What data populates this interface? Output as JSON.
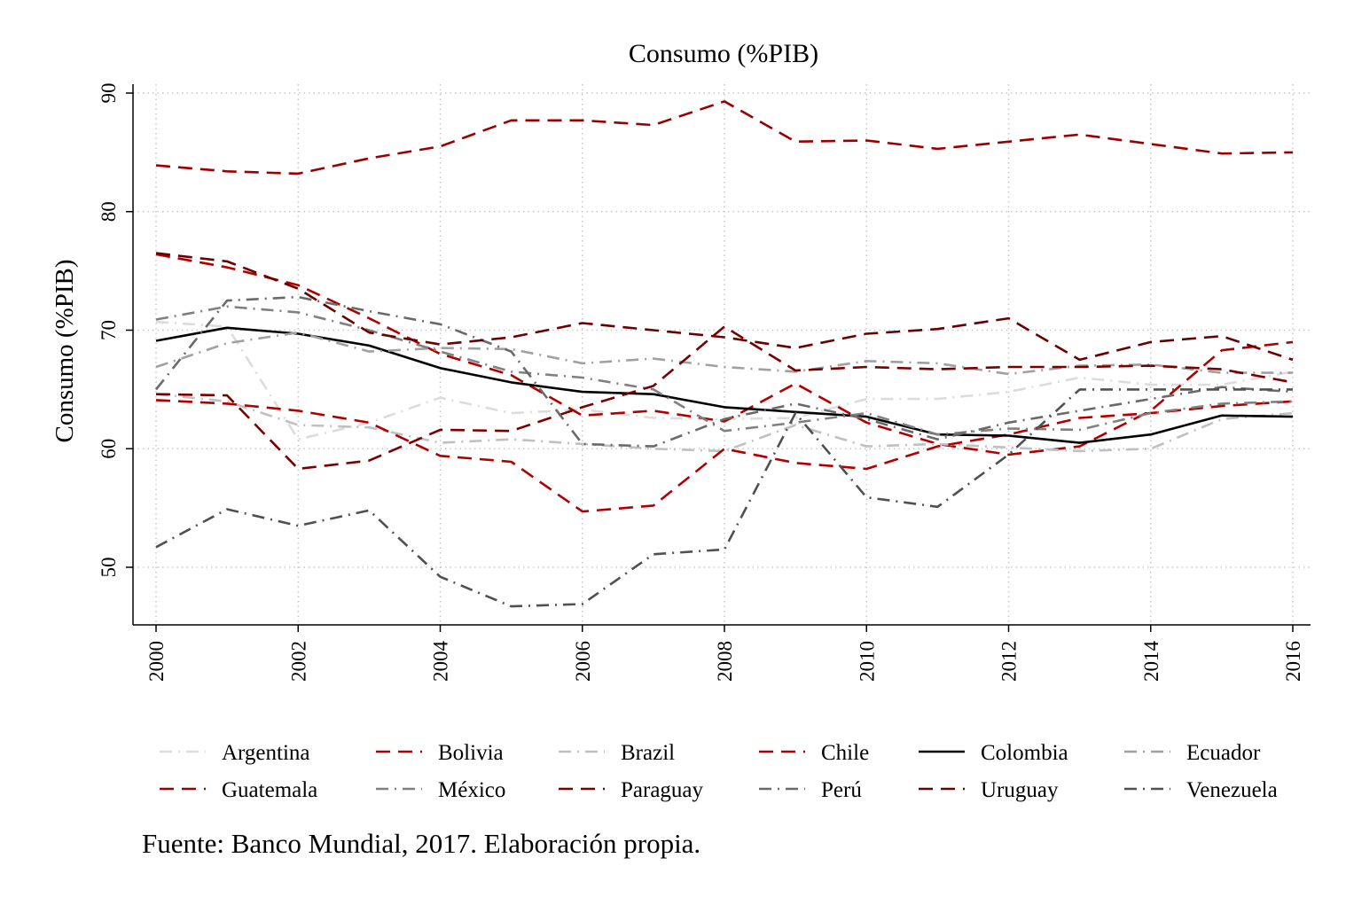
{
  "caption": "Fuente: Banco Mundial, 2017. Elaboración propia.",
  "chart_data": {
    "type": "line",
    "title": "Consumo (%PIB)",
    "xlabel": "",
    "ylabel": "Consumo (%PIB)",
    "xlim": [
      2000,
      2016
    ],
    "ylim": [
      45,
      90
    ],
    "x_ticks": [
      2000,
      2002,
      2004,
      2006,
      2008,
      2010,
      2012,
      2014,
      2016
    ],
    "y_ticks": [
      50,
      60,
      70,
      80,
      90
    ],
    "grid": true,
    "legend_position": "bottom",
    "x": [
      2000,
      2001,
      2002,
      2003,
      2004,
      2005,
      2006,
      2007,
      2008,
      2009,
      2010,
      2011,
      2012,
      2013,
      2014,
      2015,
      2016
    ],
    "series": [
      {
        "name": "Argentina",
        "color": "#dcdcdc",
        "dash": "dashdot",
        "values": [
          70.7,
          70.3,
          60.8,
          62.2,
          64.3,
          63.0,
          63.3,
          62.6,
          62.5,
          62.6,
          64.2,
          64.2,
          64.8,
          66.0,
          65.4,
          65.4,
          66.5
        ]
      },
      {
        "name": "Bolivia",
        "color": "#b00000",
        "dash": "dash",
        "values": [
          76.4,
          75.3,
          73.8,
          71.0,
          68.0,
          66.2,
          62.8,
          63.2,
          62.3,
          65.5,
          62.2,
          60.4,
          59.5,
          60.2,
          63.2,
          68.3,
          69.0
        ]
      },
      {
        "name": "Brazil",
        "color": "#c0c0c0",
        "dash": "dashdot",
        "values": [
          64.6,
          64.0,
          62.0,
          61.8,
          60.5,
          60.8,
          60.4,
          60.0,
          59.8,
          62.0,
          60.2,
          60.4,
          60.1,
          59.8,
          60.0,
          62.5,
          63.0
        ]
      },
      {
        "name": "Chile",
        "color": "#b00000",
        "dash": "dash",
        "values": [
          64.1,
          63.8,
          63.2,
          62.2,
          59.4,
          58.9,
          54.7,
          55.2,
          60.0,
          58.8,
          58.3,
          60.2,
          61.2,
          62.6,
          63.0,
          63.6,
          64.0
        ]
      },
      {
        "name": "Colombia",
        "color": "#000000",
        "dash": "solid",
        "values": [
          69.1,
          70.2,
          69.7,
          68.7,
          66.8,
          65.6,
          64.8,
          64.6,
          63.5,
          63.1,
          62.7,
          61.2,
          61.1,
          60.5,
          61.2,
          62.8,
          62.7
        ]
      },
      {
        "name": "Ecuador",
        "color": "#a0a0a0",
        "dash": "dashdot",
        "values": [
          66.9,
          68.9,
          69.8,
          68.2,
          68.5,
          68.4,
          67.2,
          67.6,
          66.9,
          66.5,
          67.4,
          67.2,
          66.3,
          67.0,
          67.1,
          66.4,
          66.4
        ]
      },
      {
        "name": "Guatemala",
        "color": "#9a0000",
        "dash": "dash",
        "values": [
          83.9,
          83.4,
          83.2,
          84.5,
          85.5,
          87.7,
          87.7,
          87.3,
          89.3,
          85.9,
          86.0,
          85.3,
          85.9,
          86.5,
          85.7,
          84.9,
          85.0
        ]
      },
      {
        "name": "México",
        "color": "#808080",
        "dash": "dashdot",
        "values": [
          70.9,
          72.0,
          71.5,
          70.0,
          68.2,
          66.5,
          66.0,
          65.0,
          61.5,
          62.2,
          63.0,
          61.2,
          61.7,
          61.6,
          63.0,
          63.8,
          64.0
        ]
      },
      {
        "name": "Paraguay",
        "color": "#7a0000",
        "dash": "dash",
        "values": [
          64.6,
          64.5,
          58.3,
          59.0,
          61.6,
          61.5,
          63.5,
          65.3,
          70.3,
          66.6,
          66.9,
          66.7,
          66.9,
          66.9,
          67.0,
          66.7,
          65.6
        ]
      },
      {
        "name": "Perú",
        "color": "#6a6a6a",
        "dash": "dashdot",
        "values": [
          65.0,
          72.5,
          72.8,
          71.6,
          70.5,
          68.2,
          60.4,
          60.2,
          62.5,
          63.8,
          62.5,
          60.8,
          62.2,
          63.2,
          64.2,
          65.2,
          64.8
        ]
      },
      {
        "name": "Uruguay",
        "color": "#6a0000",
        "dash": "dash",
        "values": [
          76.5,
          75.8,
          73.5,
          69.8,
          68.8,
          69.4,
          70.6,
          70.0,
          69.4,
          68.5,
          69.7,
          70.1,
          71.0,
          67.5,
          69.0,
          69.5,
          67.5
        ]
      },
      {
        "name": "Venezuela",
        "color": "#505050",
        "dash": "dashdot",
        "values": [
          51.7,
          54.9,
          53.5,
          54.8,
          49.2,
          46.7,
          46.9,
          51.1,
          51.5,
          63.0,
          55.9,
          55.1,
          59.5,
          65.0,
          65.0,
          65.0,
          65.0
        ]
      }
    ]
  }
}
